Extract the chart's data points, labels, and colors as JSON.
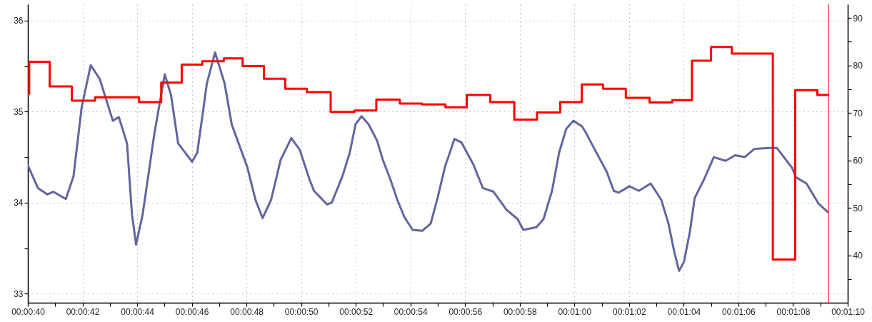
{
  "chart_data": {
    "type": "line",
    "grid": true,
    "xlim": [
      40,
      70
    ],
    "xticks": [
      {
        "value": 40,
        "label": "00:00:40"
      },
      {
        "value": 41,
        "label": null
      },
      {
        "value": 42,
        "label": "00:00:42"
      },
      {
        "value": 43,
        "label": null
      },
      {
        "value": 44,
        "label": "00:00:44"
      },
      {
        "value": 45,
        "label": null
      },
      {
        "value": 46,
        "label": "00:00:46"
      },
      {
        "value": 47,
        "label": null
      },
      {
        "value": 48,
        "label": "00:00:48"
      },
      {
        "value": 49,
        "label": null
      },
      {
        "value": 50,
        "label": "00:00:50"
      },
      {
        "value": 51,
        "label": null
      },
      {
        "value": 52,
        "label": "00:00:52"
      },
      {
        "value": 53,
        "label": null
      },
      {
        "value": 54,
        "label": "00:00:54"
      },
      {
        "value": 55,
        "label": null
      },
      {
        "value": 56,
        "label": "00:00:56"
      },
      {
        "value": 57,
        "label": null
      },
      {
        "value": 58,
        "label": "00:00:58"
      },
      {
        "value": 59,
        "label": null
      },
      {
        "value": 60,
        "label": "00:01:00"
      },
      {
        "value": 61,
        "label": null
      },
      {
        "value": 62,
        "label": "00:01:02"
      },
      {
        "value": 63,
        "label": null
      },
      {
        "value": 64,
        "label": "00:01:04"
      },
      {
        "value": 65,
        "label": null
      },
      {
        "value": 66,
        "label": "00:01:06"
      },
      {
        "value": 67,
        "label": null
      },
      {
        "value": 68,
        "label": "00:01:08"
      },
      {
        "value": 69,
        "label": null
      },
      {
        "value": 70,
        "label": "00:01:10"
      }
    ],
    "ylim": [
      32.9,
      36.18
    ],
    "yticks": [
      33,
      {
        "value": 33.5,
        "label": null
      },
      34,
      {
        "value": 34.5,
        "label": null
      },
      35,
      {
        "value": 35.5,
        "label": null
      },
      36
    ],
    "y2lim": [
      30,
      92.9
    ],
    "y2ticks": [
      {
        "value": 35,
        "label": null
      },
      40,
      {
        "value": 45,
        "label": null
      },
      50,
      {
        "value": 55,
        "label": null
      },
      60,
      {
        "value": 65,
        "label": null
      },
      70,
      {
        "value": 75,
        "label": null
      },
      80,
      {
        "value": 85,
        "label": null
      },
      90
    ],
    "series": [
      {
        "type": "line",
        "color": "#62659e",
        "x": [
          40,
          40.37,
          40.71,
          40.93,
          41.39,
          41.67,
          41.97,
          42.3,
          42.63,
          43.11,
          43.33,
          43.63,
          43.81,
          43.96,
          44.2,
          44.63,
          45.01,
          45.24,
          45.5,
          46.01,
          46.2,
          46.55,
          46.85,
          47.2,
          47.46,
          48.03,
          48.33,
          48.59,
          48.9,
          49.25,
          49.64,
          49.95,
          50.3,
          50.47,
          50.95,
          51.12,
          51.51,
          51.78,
          51.99,
          52.21,
          52.47,
          52.78,
          52.99,
          53.26,
          53.52,
          53.78,
          54.08,
          54.43,
          54.74,
          55,
          55.26,
          55.61,
          55.87,
          56.3,
          56.65,
          57.04,
          57.52,
          57.92,
          58.13,
          58.61,
          58.87,
          59.18,
          59.44,
          59.7,
          59.96,
          60.27,
          60.4,
          60.75,
          61.18,
          61.44,
          61.62,
          62.01,
          62.36,
          62.79,
          63.18,
          63.44,
          63.66,
          63.83,
          64.01,
          64.23,
          64.4,
          64.75,
          65.1,
          65.53,
          65.88,
          66.23,
          66.58,
          67.1,
          67.41,
          67.97,
          68.1,
          68.49,
          68.93,
          69.26
        ],
        "values": [
          34.41,
          34.16,
          34.09,
          34.12,
          34.04,
          34.29,
          35.05,
          35.51,
          35.36,
          34.9,
          34.94,
          34.65,
          33.87,
          33.54,
          33.87,
          34.76,
          35.41,
          35.18,
          34.65,
          34.45,
          34.55,
          35.31,
          35.65,
          35.31,
          34.86,
          34.39,
          34.03,
          33.83,
          34.03,
          34.47,
          34.71,
          34.58,
          34.26,
          34.13,
          33.98,
          34,
          34.29,
          34.55,
          34.86,
          34.95,
          34.86,
          34.68,
          34.47,
          34.26,
          34.03,
          33.84,
          33.7,
          33.69,
          33.77,
          34.06,
          34.39,
          34.7,
          34.66,
          34.42,
          34.16,
          34.12,
          33.92,
          33.82,
          33.7,
          33.73,
          33.82,
          34.13,
          34.55,
          34.81,
          34.9,
          34.84,
          34.78,
          34.58,
          34.34,
          34.13,
          34.11,
          34.18,
          34.13,
          34.21,
          34.03,
          33.77,
          33.45,
          33.25,
          33.35,
          33.69,
          34.05,
          34.26,
          34.5,
          34.46,
          34.52,
          34.5,
          34.59,
          34.6,
          34.6,
          34.38,
          34.28,
          34.21,
          33.99,
          33.9
        ]
      },
      {
        "type": "step",
        "axis": "y2",
        "color": "#ff0000",
        "x": [
          40,
          40.05,
          40.8,
          41.61,
          42.46,
          44.07,
          44.88,
          45.63,
          46.38,
          47.17,
          47.86,
          48.64,
          49.42,
          50.21,
          51.08,
          51.95,
          52.75,
          53.61,
          54.43,
          55.28,
          56.06,
          56.92,
          57.8,
          58.63,
          59.48,
          60.27,
          61.05,
          61.88,
          62.75,
          63.58,
          64.3,
          65,
          65.76,
          67.26,
          68.08,
          68.89,
          69.29
        ],
        "values": [
          74,
          80.8,
          75.6,
          72.6,
          73.3,
          72.3,
          76.4,
          80.2,
          80.9,
          81.5,
          79.9,
          77.2,
          75.1,
          74.4,
          70.2,
          70.5,
          72.8,
          72,
          71.8,
          71.2,
          73.8,
          72.3,
          68.6,
          70.1,
          72.3,
          76,
          75.1,
          73.2,
          72.2,
          72.7,
          81,
          83.9,
          82.5,
          39.1,
          74.8,
          73.8,
          73.8
        ]
      }
    ],
    "ref_lines": [
      {
        "axis": "x",
        "value": 69.3,
        "color": "#ff0000"
      }
    ]
  }
}
